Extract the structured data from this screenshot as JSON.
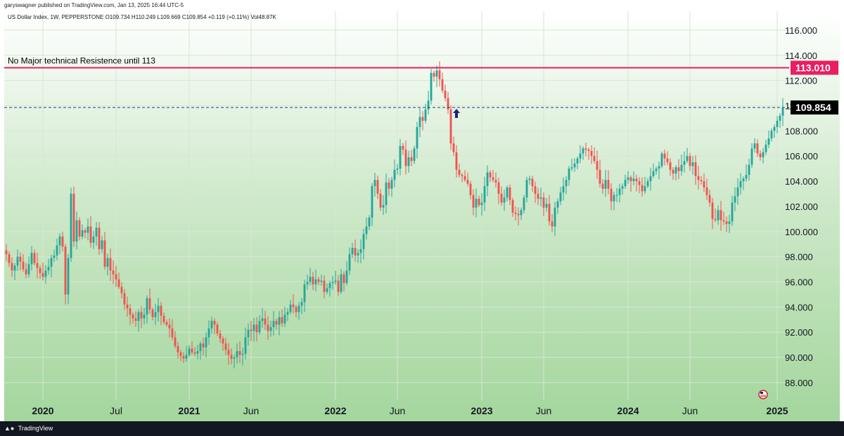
{
  "header": {
    "published_by": "garyswagner published on TradingView.com, Jan 13, 2025 16:44 UTC-5"
  },
  "footer": {
    "brand": "TradingView"
  },
  "icons": {
    "brand_logo": "tradingview-logo-icon",
    "flag": "us-flag-icon",
    "arrow": "up-arrow-icon"
  },
  "colors": {
    "up_candle": "#26a69a",
    "down_candle": "#ef5350",
    "resistance_line": "#e91e63",
    "price_line": "#1e3a8a",
    "last_price_badge": "#000000",
    "arrow": "#1a237e"
  },
  "chart_data": {
    "type": "candlestick",
    "symbol_line": "US Dollar Index, 1W, PEPPERSTONE O109.734 H110.249 L109.669 C109.854 +0.119 (+0.11%) Vol48.87K",
    "ylim": [
      86.6,
      117.5
    ],
    "y_ticks": [
      "116.000",
      "114.000",
      "112.000",
      "110.000",
      "108.000",
      "106.000",
      "104.000",
      "102.000",
      "100.000",
      "98.000",
      "96.000",
      "94.000",
      "92.000",
      "90.000",
      "88.000"
    ],
    "x_ticks": [
      {
        "label": "2020",
        "bold": true,
        "week": 13
      },
      {
        "label": "Jul",
        "bold": false,
        "week": 39
      },
      {
        "label": "2021",
        "bold": true,
        "week": 65
      },
      {
        "label": "Jun",
        "bold": false,
        "week": 87
      },
      {
        "label": "2022",
        "bold": true,
        "week": 117
      },
      {
        "label": "Jun",
        "bold": false,
        "week": 139
      },
      {
        "label": "2023",
        "bold": true,
        "week": 169
      },
      {
        "label": "Jun",
        "bold": false,
        "week": 191
      },
      {
        "label": "2024",
        "bold": true,
        "week": 221
      },
      {
        "label": "Jun",
        "bold": false,
        "week": 243
      },
      {
        "label": "2025",
        "bold": true,
        "week": 274
      }
    ],
    "resistance": {
      "value": 113.01,
      "label": "113.010",
      "annotation": "No Major technical Resistence until 113"
    },
    "last_price": {
      "value": 109.854,
      "label": "109.854"
    },
    "arrow_marker": {
      "week": 160,
      "value": 109.3
    },
    "closes": [
      98.2,
      97.5,
      96.9,
      97.3,
      98.0,
      97.6,
      97.0,
      96.6,
      97.4,
      98.3,
      97.5,
      97.1,
      96.7,
      96.4,
      96.9,
      97.2,
      97.9,
      98.1,
      98.9,
      99.6,
      98.8,
      95.0,
      97.9,
      103.0,
      99.2,
      100.9,
      99.6,
      100.1,
      99.9,
      100.4,
      99.1,
      99.6,
      100.3,
      98.6,
      99.3,
      97.2,
      97.9,
      96.9,
      96.6,
      96.2,
      95.6,
      95.1,
      94.2,
      93.9,
      93.4,
      93.1,
      92.9,
      93.6,
      93.1,
      93.4,
      94.7,
      93.8,
      93.2,
      93.6,
      94.1,
      93.3,
      92.8,
      92.6,
      92.3,
      91.6,
      90.9,
      90.4,
      90.1,
      89.9,
      90.2,
      90.7,
      90.4,
      90.3,
      90.5,
      91.1,
      90.8,
      91.6,
      92.3,
      92.9,
      92.6,
      91.9,
      91.5,
      91.1,
      90.6,
      90.2,
      89.9,
      90.0,
      90.5,
      90.2,
      90.3,
      91.6,
      92.2,
      92.1,
      92.6,
      92.0,
      92.9,
      93.1,
      92.6,
      92.1,
      92.4,
      92.9,
      92.6,
      93.2,
      92.7,
      93.4,
      93.6,
      94.2,
      94.0,
      93.6,
      94.1,
      94.4,
      95.8,
      96.0,
      96.4,
      95.8,
      96.2,
      96.0,
      96.1,
      95.2,
      95.5,
      95.9,
      96.0,
      96.1,
      95.2,
      96.6,
      95.9,
      96.9,
      98.2,
      98.7,
      98.1,
      98.3,
      98.6,
      99.8,
      100.4,
      101.1,
      103.6,
      104.1,
      103.0,
      101.9,
      102.1,
      103.9,
      103.4,
      104.1,
      104.9,
      105.0,
      106.8,
      106.5,
      105.2,
      105.9,
      105.6,
      106.6,
      108.3,
      109.1,
      108.8,
      109.7,
      110.4,
      112.6,
      112.3,
      112.8,
      112.1,
      111.2,
      110.6,
      109.7,
      107.0,
      106.3,
      104.9,
      104.5,
      104.4,
      104.1,
      103.8,
      102.9,
      101.9,
      102.6,
      102.1,
      102.3,
      103.6,
      104.7,
      104.3,
      104.1,
      103.9,
      103.0,
      102.3,
      102.7,
      103.5,
      102.5,
      101.5,
      101.4,
      101.3,
      101.7,
      102.7,
      104.1,
      104.2,
      103.6,
      103.0,
      102.6,
      102.7,
      101.9,
      102.2,
      100.8,
      100.4,
      101.9,
      102.4,
      103.1,
      103.6,
      104.1,
      105.0,
      105.1,
      105.4,
      105.8,
      106.2,
      106.6,
      106.5,
      106.4,
      106.0,
      105.6,
      104.9,
      103.8,
      103.4,
      104.1,
      103.4,
      102.4,
      102.9,
      102.9,
      103.4,
      103.6,
      104.1,
      104.3,
      104.0,
      104.2,
      104.0,
      103.7,
      103.2,
      103.6,
      104.0,
      104.4,
      104.8,
      105.0,
      105.2,
      106.2,
      105.8,
      105.5,
      104.9,
      104.6,
      105.1,
      104.8,
      105.3,
      105.6,
      106.0,
      105.2,
      105.5,
      104.4,
      104.1,
      104.0,
      103.5,
      102.9,
      102.3,
      101.0,
      100.9,
      101.7,
      100.9,
      100.8,
      100.6,
      100.8,
      102.3,
      102.8,
      103.5,
      104.0,
      104.2,
      104.5,
      105.3,
      106.6,
      107.0,
      106.2,
      105.9,
      106.3,
      106.9,
      107.4,
      108.0,
      108.3,
      108.8,
      109.2,
      109.854
    ]
  }
}
